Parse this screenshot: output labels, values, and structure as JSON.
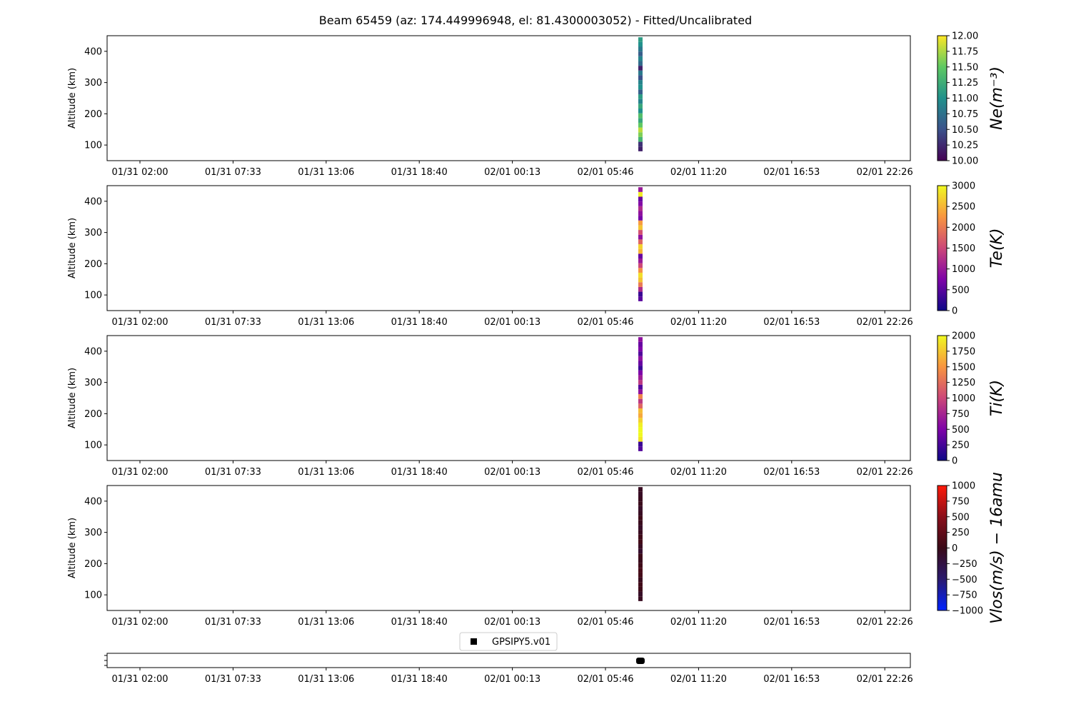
{
  "figure": {
    "title": "Beam 65459 (az: 174.449996948, el: 81.4300003052) - Fitted/Uncalibrated"
  },
  "chart_data": [
    {
      "type": "heatmap",
      "ylabel": "Altitude (km)",
      "y_ticks": [
        100,
        200,
        300,
        400
      ],
      "ylim": [
        50,
        450
      ],
      "x_tick_labels": [
        "01/31 02:00",
        "01/31 07:33",
        "01/31 13:06",
        "01/31 18:40",
        "02/01 00:13",
        "02/01 05:46",
        "02/01 11:20",
        "02/01 16:53",
        "02/01 22:26"
      ],
      "data_time": "02/01 07:50",
      "altitude_range": [
        80,
        445
      ],
      "colorbar": {
        "label": "Ne(m⁻³)",
        "range": [
          10.0,
          12.0
        ],
        "ticks": [
          "10.00",
          "10.25",
          "10.50",
          "10.75",
          "11.00",
          "11.25",
          "11.50",
          "11.75",
          "12.00"
        ],
        "colormap": "viridis",
        "colors": [
          "#440154",
          "#3b528b",
          "#21918c",
          "#5ec962",
          "#fde725"
        ]
      },
      "column_values": [
        10.2,
        10.3,
        11.3,
        11.6,
        11.8,
        11.5,
        11.2,
        11.4,
        11.0,
        11.2,
        10.9,
        11.1,
        10.6,
        11.0,
        10.9,
        10.5,
        10.8,
        10.2,
        10.7,
        10.9,
        10.6,
        10.8,
        11.0,
        11.1
      ]
    },
    {
      "type": "heatmap",
      "ylabel": "Altitude (km)",
      "y_ticks": [
        100,
        200,
        300,
        400
      ],
      "ylim": [
        50,
        450
      ],
      "x_tick_labels": [
        "01/31 02:00",
        "01/31 07:33",
        "01/31 13:06",
        "01/31 18:40",
        "02/01 00:13",
        "02/01 05:46",
        "02/01 11:20",
        "02/01 16:53",
        "02/01 22:26"
      ],
      "data_time": "02/01 07:50",
      "altitude_range": [
        80,
        445
      ],
      "colorbar": {
        "label": "Te(K)",
        "range": [
          0,
          3000
        ],
        "ticks": [
          "0",
          "500",
          "1000",
          "1500",
          "2000",
          "2500",
          "3000"
        ],
        "colormap": "plasma",
        "colors": [
          "#0d0887",
          "#7e03a8",
          "#cc4778",
          "#f89540",
          "#f0f921"
        ]
      },
      "column_values": [
        500,
        300,
        1200,
        2000,
        2600,
        2800,
        2200,
        1500,
        1000,
        600,
        2500,
        2700,
        1800,
        900,
        1600,
        2600,
        2300,
        700,
        900,
        1200,
        800,
        600,
        2900,
        1000
      ]
    },
    {
      "type": "heatmap",
      "ylabel": "Altitude (km)",
      "y_ticks": [
        100,
        200,
        300,
        400
      ],
      "ylim": [
        50,
        450
      ],
      "x_tick_labels": [
        "01/31 02:00",
        "01/31 07:33",
        "01/31 13:06",
        "01/31 18:40",
        "02/01 00:13",
        "02/01 05:46",
        "02/01 11:20",
        "02/01 16:53",
        "02/01 22:26"
      ],
      "data_time": "02/01 07:50",
      "altitude_range": [
        80,
        445
      ],
      "colorbar": {
        "label": "Ti(K)",
        "range": [
          0,
          2000
        ],
        "ticks": [
          "0",
          "250",
          "500",
          "750",
          "1000",
          "1250",
          "1500",
          "1750",
          "2000"
        ],
        "colormap": "plasma",
        "colors": [
          "#0d0887",
          "#7e03a8",
          "#cc4778",
          "#f89540",
          "#f0f921"
        ]
      },
      "column_values": [
        300,
        200,
        1900,
        2000,
        2000,
        1950,
        1800,
        1600,
        1700,
        1200,
        900,
        1400,
        600,
        300,
        900,
        700,
        500,
        200,
        400,
        600,
        300,
        500,
        400,
        600
      ]
    },
    {
      "type": "heatmap",
      "ylabel": "Altitude (km)",
      "y_ticks": [
        100,
        200,
        300,
        400
      ],
      "ylim": [
        50,
        450
      ],
      "x_tick_labels": [
        "01/31 02:00",
        "01/31 07:33",
        "01/31 13:06",
        "01/31 18:40",
        "02/01 00:13",
        "02/01 05:46",
        "02/01 11:20",
        "02/01 16:53",
        "02/01 22:26"
      ],
      "data_time": "02/01 07:50",
      "altitude_range": [
        80,
        445
      ],
      "colorbar": {
        "label": "Vlos(m/s) − 16amu",
        "range": [
          -1000,
          1000
        ],
        "ticks": [
          "−1000",
          "−750",
          "−500",
          "−250",
          "0",
          "250",
          "500",
          "750",
          "1000"
        ],
        "colormap": "blue-black-red",
        "colors": [
          "#0022ff",
          "#2a1a6e",
          "#3a0a18",
          "#8a0f1a",
          "#ff1a0a"
        ]
      },
      "column_values": [
        -50,
        -80,
        20,
        40,
        -30,
        60,
        80,
        30,
        -20,
        10,
        -120,
        -60,
        50,
        30,
        -40,
        -90,
        -30,
        20,
        -60,
        -80,
        -20,
        -30,
        -70,
        -50
      ]
    },
    {
      "type": "scatter",
      "legend_label": "GPSIPY5.v01",
      "x_tick_labels": [
        "01/31 02:00",
        "01/31 07:33",
        "01/31 13:06",
        "01/31 18:40",
        "02/01 00:13",
        "02/01 05:46",
        "02/01 11:20",
        "02/01 16:53",
        "02/01 22:26"
      ],
      "data_time": "02/01 07:50",
      "marker": "square",
      "marker_color": "#000000"
    }
  ]
}
